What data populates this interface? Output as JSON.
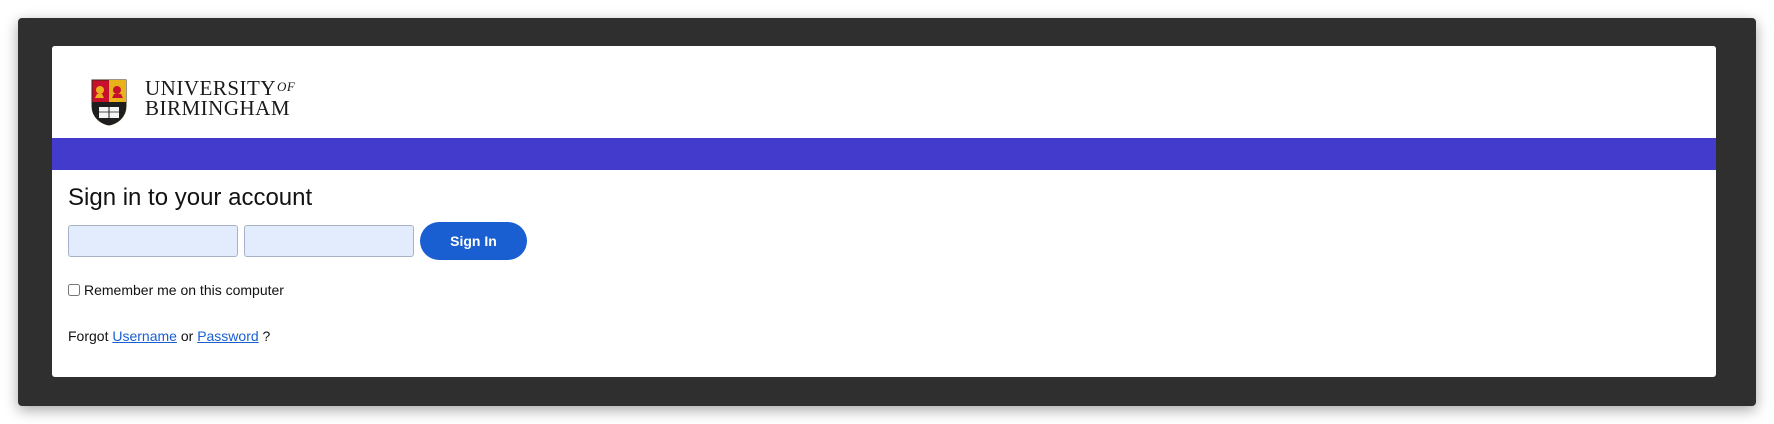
{
  "header": {
    "logo_line1": "UNIVERSITY",
    "logo_of": "OF",
    "logo_line2": "BIRMINGHAM",
    "crest_icon": "university-crest-icon",
    "band_color": "#423bcc"
  },
  "form": {
    "title": "Sign in to your account",
    "username_value": "",
    "username_placeholder": "",
    "password_value": "",
    "password_placeholder": "",
    "signin_label": "Sign In",
    "remember_label": "Remember me on this computer",
    "remember_checked": false,
    "forgot_prefix": "Forgot",
    "username_link": "Username",
    "or_text": "or",
    "password_link": "Password",
    "forgot_suffix": "?",
    "accent_color": "#1a5fd1"
  }
}
